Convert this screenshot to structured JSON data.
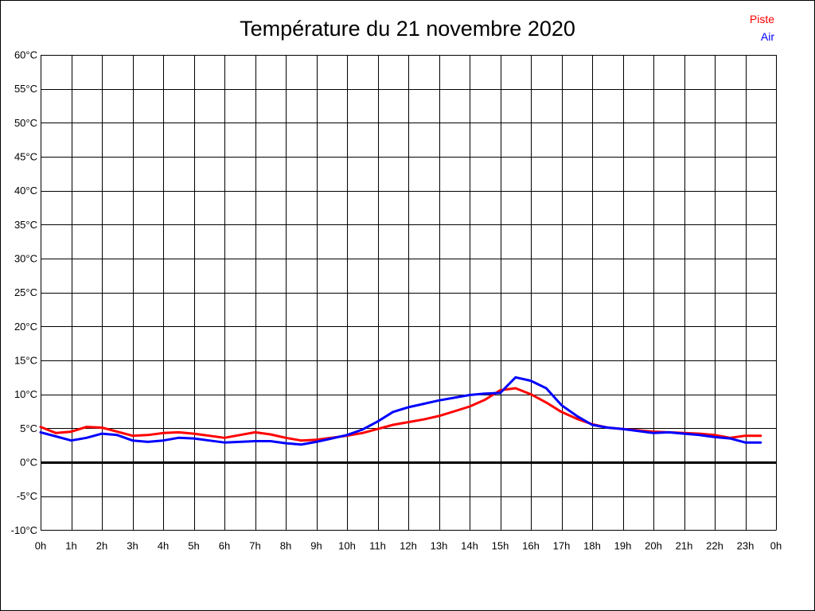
{
  "title": "Température du 21 novembre 2020",
  "legend": [
    {
      "label": "Piste",
      "color": "#ff0000"
    },
    {
      "label": "Air",
      "color": "#0000ff"
    }
  ],
  "chart_data": {
    "type": "line",
    "title": "Température du 21 novembre 2020",
    "grid": true,
    "grid_color": "#000000",
    "zero_line_thick": true,
    "legend_position": "top-right",
    "xlabel": "",
    "ylabel": "",
    "x_unit": "hours",
    "xlim": [
      0,
      24
    ],
    "ylim": [
      -10,
      60
    ],
    "ytick_step": 5,
    "ytick_labels": [
      "60°C",
      "55°C",
      "50°C",
      "45°C",
      "40°C",
      "35°C",
      "30°C",
      "25°C",
      "20°C",
      "15°C",
      "10°C",
      "5°C",
      "0°C",
      "-5°C",
      "-10°C"
    ],
    "xtick_labels": [
      "0h",
      "1h",
      "2h",
      "3h",
      "4h",
      "5h",
      "6h",
      "7h",
      "8h",
      "9h",
      "10h",
      "11h",
      "12h",
      "13h",
      "14h",
      "15h",
      "16h",
      "17h",
      "18h",
      "19h",
      "20h",
      "21h",
      "22h",
      "23h",
      "0h"
    ],
    "x": [
      0,
      0.5,
      1,
      1.5,
      2,
      2.5,
      3,
      3.5,
      4,
      4.5,
      5,
      5.5,
      6,
      6.5,
      7,
      7.5,
      8,
      8.5,
      9,
      9.5,
      10,
      10.5,
      11,
      11.5,
      12,
      12.5,
      13,
      13.5,
      14,
      14.5,
      15,
      15.5,
      16,
      16.5,
      17,
      17.5,
      18,
      18.5,
      19,
      19.5,
      20,
      20.5,
      21,
      21.5,
      22,
      22.5,
      23,
      23.5
    ],
    "series": [
      {
        "name": "Piste",
        "color": "#ff0000",
        "values": [
          5.2,
          4.3,
          4.5,
          5.2,
          5.1,
          4.5,
          3.9,
          4.0,
          4.3,
          4.4,
          4.2,
          3.9,
          3.6,
          4.0,
          4.4,
          4.1,
          3.6,
          3.2,
          3.3,
          3.6,
          3.9,
          4.3,
          4.9,
          5.5,
          5.9,
          6.3,
          6.8,
          7.5,
          8.2,
          9.2,
          10.6,
          10.9,
          10.0,
          8.8,
          7.4,
          6.4,
          5.6,
          5.1,
          4.9,
          4.7,
          4.5,
          4.4,
          4.3,
          4.2,
          4.0,
          3.6,
          3.9,
          3.9
        ]
      },
      {
        "name": "Air",
        "color": "#0000ff",
        "values": [
          4.4,
          3.8,
          3.2,
          3.6,
          4.2,
          4.0,
          3.2,
          3.0,
          3.2,
          3.6,
          3.5,
          3.2,
          2.9,
          3.0,
          3.1,
          3.1,
          2.8,
          2.6,
          3.0,
          3.5,
          4.0,
          4.8,
          6.0,
          7.4,
          8.1,
          8.6,
          9.1,
          9.5,
          9.9,
          10.1,
          10.2,
          12.5,
          12.0,
          10.9,
          8.4,
          6.8,
          5.5,
          5.1,
          4.9,
          4.6,
          4.3,
          4.4,
          4.2,
          4.0,
          3.7,
          3.5,
          2.9,
          2.9
        ]
      }
    ]
  }
}
